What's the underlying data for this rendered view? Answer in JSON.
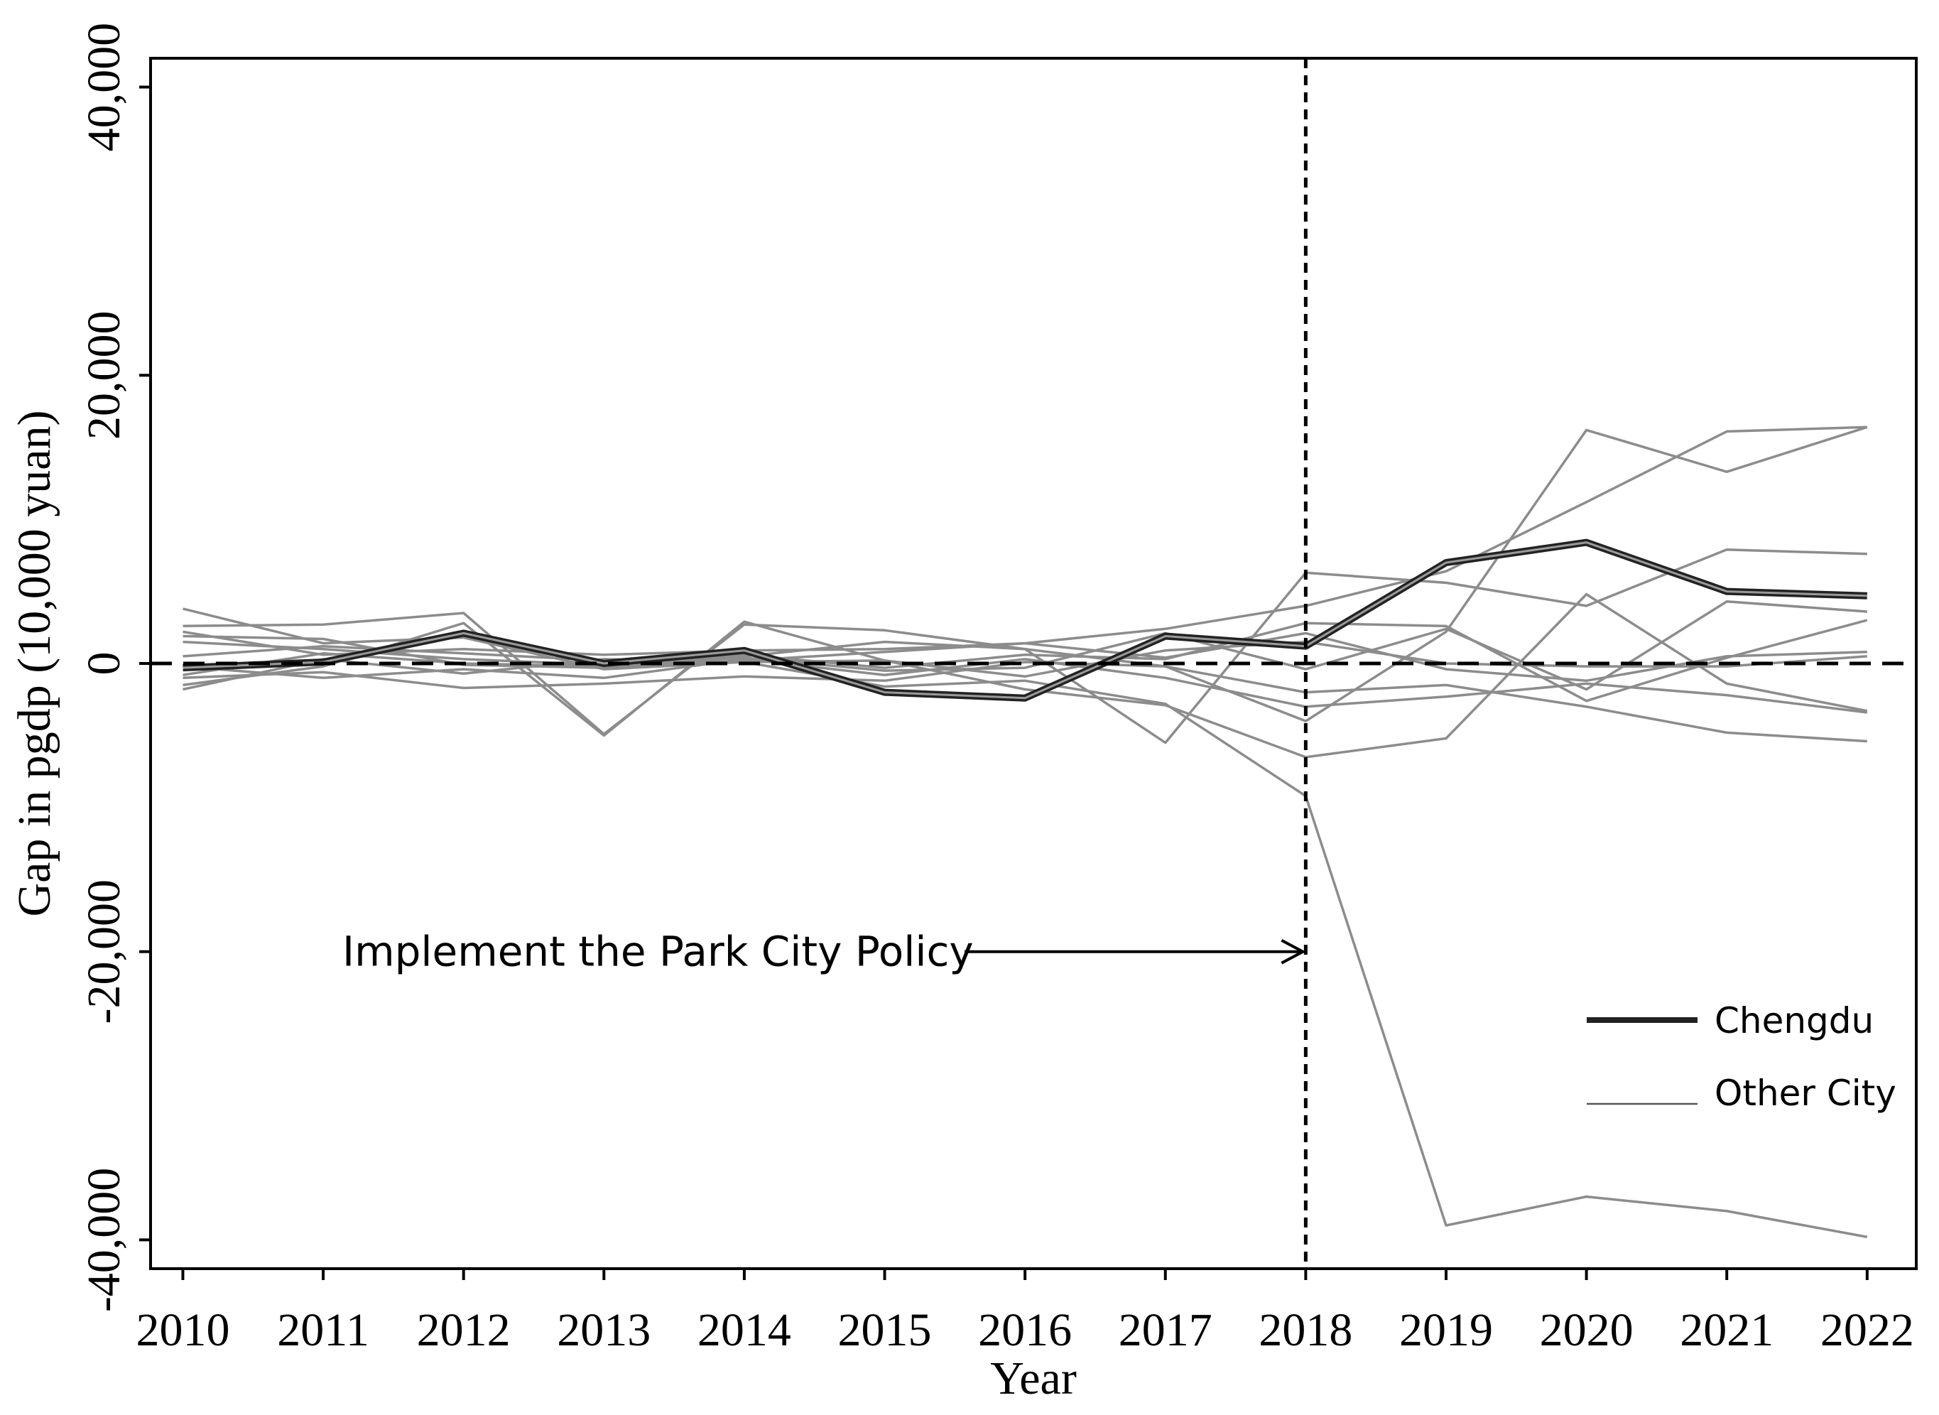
{
  "chart_data": {
    "type": "line",
    "title": "",
    "xlabel": "Year",
    "ylabel": "Gap in pgdp (10,000 yuan)",
    "categories": [
      2010,
      2011,
      2012,
      2013,
      2014,
      2015,
      2016,
      2017,
      2018,
      2019,
      2020,
      2021,
      2022
    ],
    "x_tick_labels": [
      "2010",
      "2011",
      "2012",
      "2013",
      "2014",
      "2015",
      "2016",
      "2017",
      "2018",
      "2019",
      "2020",
      "2021",
      "2022"
    ],
    "y_ticks": [
      -40000,
      -20000,
      0,
      20000,
      40000
    ],
    "y_tick_labels": [
      "-40,000",
      "-20,000",
      "0",
      "20,000",
      "40,000"
    ],
    "ylim": [
      -42000,
      42000
    ],
    "xlim": [
      2009.77,
      2022.35
    ],
    "zero_line": 0,
    "policy_year": 2018,
    "annotation": "Implement the Park City Policy",
    "legend": {
      "position": "bottom-right",
      "chengdu_label": "Chengdu",
      "other_label": "Other City"
    },
    "colors": {
      "chengdu": "#222222",
      "other": "#8c8c8c",
      "axis": "#000000"
    },
    "series": [
      {
        "name": "Chengdu",
        "highlight": true,
        "values": [
          -300,
          100,
          2100,
          0,
          900,
          -2000,
          -2400,
          1900,
          1200,
          7000,
          8400,
          5000,
          4700
        ]
      },
      {
        "name": "Other City",
        "highlight": false,
        "values": [
          3800,
          1400,
          1800,
          -400,
          100,
          -1600,
          -1200,
          -2800,
          -9200,
          -39000,
          -37000,
          -38000,
          -39800
        ]
      },
      {
        "name": "Other City",
        "highlight": false,
        "values": [
          2600,
          2700,
          3500,
          -4900,
          2700,
          2300,
          1000,
          -200,
          -4000,
          2200,
          16200,
          13300,
          16400
        ]
      },
      {
        "name": "Other City",
        "highlight": false,
        "values": [
          1900,
          1700,
          -100,
          -300,
          200,
          800,
          1400,
          2400,
          4000,
          6400,
          11200,
          16100,
          16400
        ]
      },
      {
        "name": "Other City",
        "highlight": false,
        "values": [
          1500,
          1000,
          300,
          -100,
          500,
          1500,
          1000,
          -5500,
          6300,
          5600,
          4000,
          7900,
          7600
        ]
      },
      {
        "name": "Other City",
        "highlight": false,
        "values": [
          -1500,
          -200,
          2800,
          -5000,
          2900,
          200,
          -1800,
          -2900,
          -6500,
          -5200,
          4800,
          -1400,
          -3300
        ]
      },
      {
        "name": "Other City",
        "highlight": false,
        "values": [
          -800,
          700,
          0,
          -200,
          400,
          -500,
          -300,
          2100,
          -400,
          2400,
          -1800,
          4300,
          3600
        ]
      },
      {
        "name": "Other City",
        "highlight": false,
        "values": [
          -1000,
          -600,
          -1700,
          -1400,
          -900,
          -1200,
          100,
          -200,
          -2000,
          -1500,
          -3000,
          -4800,
          -5400
        ]
      },
      {
        "name": "Other City",
        "highlight": false,
        "values": [
          500,
          1200,
          700,
          200,
          600,
          -300,
          600,
          300,
          2800,
          2600,
          -2600,
          400,
          3000
        ]
      },
      {
        "name": "Other City",
        "highlight": false,
        "values": [
          -200,
          -1000,
          -400,
          -1000,
          300,
          -800,
          300,
          -1000,
          -3000,
          -2300,
          -1400,
          -2200,
          -3400
        ]
      },
      {
        "name": "Other City",
        "highlight": false,
        "values": [
          2200,
          600,
          1000,
          600,
          900,
          1000,
          1400,
          400,
          2100,
          -400,
          -1200,
          500,
          800
        ]
      },
      {
        "name": "Other City",
        "highlight": false,
        "values": [
          -1800,
          300,
          -700,
          300,
          100,
          200,
          -900,
          900,
          1500,
          0,
          -200,
          -200,
          500
        ]
      }
    ]
  }
}
